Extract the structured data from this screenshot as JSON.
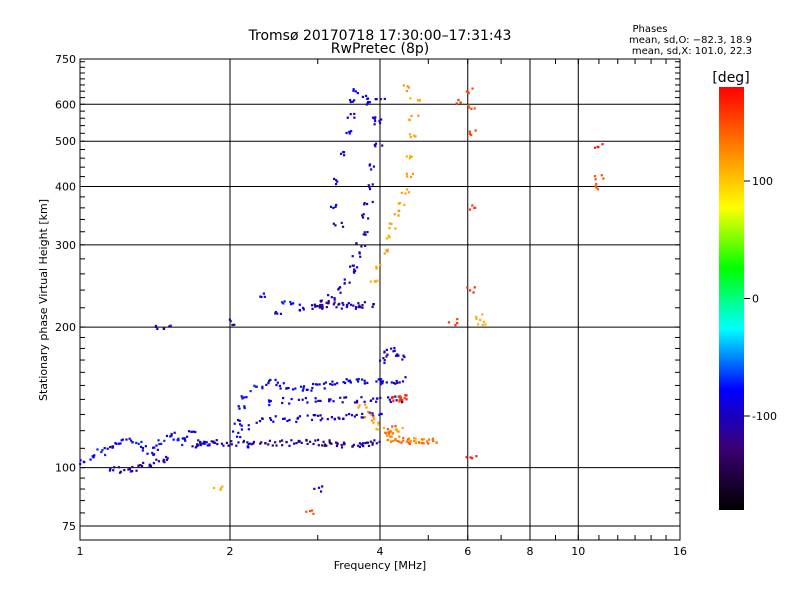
{
  "chart_data": {
    "type": "scatter",
    "title": "Tromsø 20170718 17:30:00–17:31:43",
    "subtitle": "RwPretec (8p)",
    "xlabel": "Frequency [MHz]",
    "ylabel": "Stationary phase Virtual Height [km]",
    "x_scale": "log",
    "y_scale": "log",
    "xlim": [
      1,
      16
    ],
    "ylim": [
      70,
      750
    ],
    "x_ticks": [
      1,
      2,
      4,
      6,
      8,
      10,
      16
    ],
    "y_ticks": [
      75,
      100,
      200,
      300,
      400,
      500,
      600,
      750
    ],
    "grid": true,
    "phases_info": {
      "heading": "Phases",
      "line1": "mean, sd,O: −82.3, 18.9",
      "line2": "mean, sd,X: 101.0, 22.3"
    },
    "colorbar": {
      "label": "[deg]",
      "range": [
        -180,
        180
      ],
      "ticks": [
        100,
        0,
        -100
      ],
      "colors": [
        "#000000",
        "#3a0070",
        "#0000ff",
        "#00ffff",
        "#00ff00",
        "#ffff00",
        "#ff8000",
        "#ff0000"
      ]
    },
    "series": [
      {
        "points": [
          [
            1.02,
            103,
            -90
          ],
          [
            1.06,
            105,
            -80
          ],
          [
            1.1,
            108,
            -70
          ],
          [
            1.14,
            110,
            -90
          ],
          [
            1.18,
            112,
            -100
          ],
          [
            1.22,
            114,
            -80
          ],
          [
            1.26,
            114,
            -90
          ],
          [
            1.3,
            113,
            -70
          ],
          [
            1.34,
            110,
            -85
          ],
          [
            1.38,
            108,
            -80
          ],
          [
            1.42,
            110,
            -95
          ],
          [
            1.47,
            114,
            -70
          ],
          [
            1.52,
            118,
            -90
          ],
          [
            1.56,
            116,
            -80
          ],
          [
            1.6,
            113,
            -70
          ],
          [
            1.64,
            115,
            -85
          ],
          [
            1.68,
            118,
            -90
          ],
          [
            1.72,
            112,
            -100
          ],
          [
            1.76,
            113,
            -90
          ],
          [
            1.8,
            113,
            -80
          ],
          [
            1.85,
            113,
            -90
          ]
        ]
      },
      {
        "points": [
          [
            1.15,
            100,
            -100
          ],
          [
            1.2,
            99,
            -110
          ],
          [
            1.25,
            99,
            -100
          ],
          [
            1.3,
            100,
            -120
          ],
          [
            1.35,
            101,
            -110
          ],
          [
            1.4,
            102,
            -100
          ],
          [
            1.45,
            103,
            -105
          ],
          [
            1.5,
            104,
            -95
          ]
        ]
      },
      {
        "points": [
          [
            1.75,
            112,
            -100
          ],
          [
            1.85,
            113,
            -105
          ],
          [
            1.95,
            113,
            -110
          ],
          [
            2.05,
            113,
            -100
          ],
          [
            2.15,
            113,
            -110
          ],
          [
            2.25,
            113,
            -115
          ],
          [
            2.35,
            113,
            -120
          ],
          [
            2.45,
            113,
            -110
          ],
          [
            2.55,
            113,
            -115
          ],
          [
            2.65,
            113,
            -100
          ],
          [
            2.75,
            113,
            -110
          ],
          [
            2.85,
            113,
            -105
          ],
          [
            2.95,
            113,
            -100
          ],
          [
            3.05,
            113,
            -115
          ],
          [
            3.15,
            113,
            -130
          ],
          [
            3.25,
            112,
            -140
          ],
          [
            3.35,
            112,
            -120
          ],
          [
            3.45,
            112,
            -110
          ],
          [
            3.55,
            112,
            -105
          ],
          [
            3.65,
            112,
            -100
          ],
          [
            3.75,
            112,
            -110
          ],
          [
            3.85,
            113,
            -115
          ],
          [
            3.95,
            113,
            -105
          ]
        ]
      },
      {
        "points": [
          [
            2.05,
            125,
            -90
          ],
          [
            2.1,
            135,
            -80
          ],
          [
            2.15,
            142,
            -85
          ],
          [
            2.25,
            148,
            -70
          ],
          [
            2.35,
            150,
            -80
          ],
          [
            2.45,
            152,
            -90
          ],
          [
            2.55,
            150,
            -85
          ],
          [
            2.65,
            148,
            -80
          ],
          [
            2.75,
            147,
            -75
          ],
          [
            2.85,
            148,
            -90
          ],
          [
            2.95,
            150,
            -85
          ],
          [
            3.05,
            150,
            -80
          ],
          [
            3.2,
            152,
            -90
          ],
          [
            3.35,
            153,
            -85
          ],
          [
            3.5,
            152,
            -80
          ],
          [
            3.65,
            153,
            -75
          ],
          [
            3.8,
            152,
            -90
          ],
          [
            3.95,
            153,
            -85
          ],
          [
            4.1,
            153,
            -90
          ],
          [
            4.25,
            153,
            -100
          ],
          [
            4.4,
            154,
            -95
          ]
        ]
      },
      {
        "points": [
          [
            2.05,
            118,
            -80
          ],
          [
            2.15,
            122,
            -85
          ],
          [
            2.3,
            126,
            -90
          ],
          [
            2.45,
            127,
            -95
          ],
          [
            2.6,
            126,
            -85
          ],
          [
            2.75,
            127,
            -90
          ],
          [
            2.9,
            128,
            -95
          ],
          [
            3.05,
            128,
            -90
          ],
          [
            3.2,
            128,
            -100
          ],
          [
            3.35,
            129,
            -95
          ],
          [
            3.5,
            129,
            -90
          ],
          [
            3.65,
            129,
            -100
          ],
          [
            3.8,
            130,
            -95
          ],
          [
            3.95,
            130,
            -90
          ]
        ]
      },
      {
        "points": [
          [
            2.4,
            138,
            -80
          ],
          [
            2.6,
            139,
            -85
          ],
          [
            2.8,
            139,
            -90
          ],
          [
            3.0,
            139,
            -95
          ],
          [
            3.2,
            139,
            -100
          ],
          [
            3.4,
            140,
            -105
          ],
          [
            3.6,
            140,
            -110
          ],
          [
            3.8,
            140,
            -100
          ],
          [
            4.0,
            140,
            -95
          ],
          [
            4.2,
            140,
            -100
          ],
          [
            4.4,
            140,
            -110
          ]
        ]
      },
      {
        "points": [
          [
            3.7,
            135,
            120
          ],
          [
            3.8,
            130,
            130
          ],
          [
            3.9,
            126,
            120
          ],
          [
            4.0,
            122,
            110
          ],
          [
            4.1,
            120,
            140
          ],
          [
            4.2,
            121,
            150
          ],
          [
            4.3,
            120,
            130
          ],
          [
            4.4,
            120,
            110
          ]
        ]
      },
      {
        "points": [
          [
            4.1,
            116,
            120
          ],
          [
            4.2,
            115,
            130
          ],
          [
            4.3,
            115,
            125
          ],
          [
            4.4,
            115,
            140
          ],
          [
            4.5,
            114,
            150
          ],
          [
            4.6,
            114,
            130
          ],
          [
            4.7,
            114,
            120
          ],
          [
            4.8,
            114,
            110
          ],
          [
            4.9,
            114,
            135
          ],
          [
            5.0,
            114,
            145
          ],
          [
            5.1,
            114,
            130
          ]
        ]
      },
      {
        "points": [
          [
            4.2,
            140,
            160
          ],
          [
            4.3,
            141,
            165
          ],
          [
            4.4,
            140,
            155
          ],
          [
            4.5,
            141,
            170
          ]
        ]
      },
      {
        "points": [
          [
            2.6,
            225,
            -70
          ],
          [
            2.7,
            222,
            -80
          ],
          [
            2.8,
            220,
            -90
          ],
          [
            2.9,
            221,
            -100
          ],
          [
            3.0,
            222,
            -95
          ],
          [
            3.1,
            225,
            -110
          ],
          [
            3.2,
            232,
            -100
          ],
          [
            3.3,
            240,
            -105
          ],
          [
            3.4,
            250,
            -110
          ],
          [
            3.5,
            262,
            -100
          ],
          [
            3.55,
            272,
            -95
          ],
          [
            3.6,
            285,
            -100
          ],
          [
            3.65,
            300,
            -110
          ],
          [
            3.7,
            320,
            -100
          ],
          [
            3.75,
            345,
            -105
          ],
          [
            3.8,
            370,
            -110
          ],
          [
            3.85,
            400,
            -100
          ],
          [
            3.9,
            440,
            -95
          ],
          [
            3.95,
            490,
            -100
          ],
          [
            3.98,
            550,
            -110
          ],
          [
            4.0,
            610,
            -100
          ]
        ]
      },
      {
        "points": [
          [
            3.0,
            222,
            -110
          ],
          [
            3.1,
            223,
            -120
          ],
          [
            3.2,
            223,
            -115
          ],
          [
            3.3,
            222,
            -110
          ],
          [
            3.4,
            222,
            -105
          ],
          [
            3.5,
            222,
            -100
          ],
          [
            3.6,
            222,
            -110
          ],
          [
            3.7,
            222,
            -115
          ],
          [
            3.8,
            223,
            -120
          ]
        ]
      },
      {
        "points": [
          [
            3.2,
            360,
            -80
          ],
          [
            3.3,
            410,
            -85
          ],
          [
            3.4,
            470,
            -90
          ],
          [
            3.45,
            520,
            -80
          ],
          [
            3.5,
            570,
            -85
          ],
          [
            3.55,
            610,
            -90
          ],
          [
            3.6,
            640,
            -80
          ],
          [
            3.7,
            620,
            -85
          ],
          [
            3.8,
            600,
            -80
          ],
          [
            3.9,
            560,
            -90
          ]
        ]
      },
      {
        "points": [
          [
            3.9,
            250,
            110
          ],
          [
            4.0,
            270,
            115
          ],
          [
            4.05,
            290,
            120
          ],
          [
            4.15,
            310,
            110
          ],
          [
            4.25,
            330,
            115
          ],
          [
            4.35,
            350,
            120
          ],
          [
            4.45,
            370,
            110
          ],
          [
            4.5,
            390,
            115
          ],
          [
            4.55,
            420,
            120
          ],
          [
            4.6,
            460,
            110
          ],
          [
            4.65,
            510,
            115
          ],
          [
            4.68,
            560,
            120
          ],
          [
            4.7,
            610,
            110
          ]
        ]
      },
      {
        "points": [
          [
            4.0,
            170,
            -100
          ],
          [
            4.1,
            175,
            -110
          ],
          [
            4.2,
            180,
            -100
          ],
          [
            4.3,
            175,
            -90
          ],
          [
            4.4,
            172,
            -100
          ]
        ]
      },
      {
        "points": [
          [
            1.45,
            200,
            -100
          ],
          [
            1.5,
            200,
            -105
          ],
          [
            2.0,
            205,
            -110
          ]
        ]
      },
      {
        "points": [
          [
            6.1,
            640,
            150
          ],
          [
            6.1,
            590,
            150
          ],
          [
            6.1,
            520,
            155
          ],
          [
            6.1,
            360,
            160
          ],
          [
            6.1,
            240,
            165
          ],
          [
            6.1,
            105,
            170
          ],
          [
            6.3,
            210,
            110
          ],
          [
            6.4,
            205,
            110
          ],
          [
            11.0,
            490,
            170
          ],
          [
            11.0,
            420,
            150
          ],
          [
            11.0,
            400,
            145
          ],
          [
            5.6,
            205,
            160
          ],
          [
            5.8,
            610,
            160
          ],
          [
            4.5,
            650,
            120
          ]
        ]
      },
      {
        "points": [
          [
            1.9,
            90,
            110
          ],
          [
            2.2,
            112,
            -80
          ],
          [
            2.9,
            80,
            150
          ],
          [
            3.0,
            90,
            -90
          ],
          [
            2.5,
            215,
            -100
          ],
          [
            2.3,
            235,
            -90
          ],
          [
            3.3,
            330,
            -120
          ]
        ]
      }
    ]
  }
}
